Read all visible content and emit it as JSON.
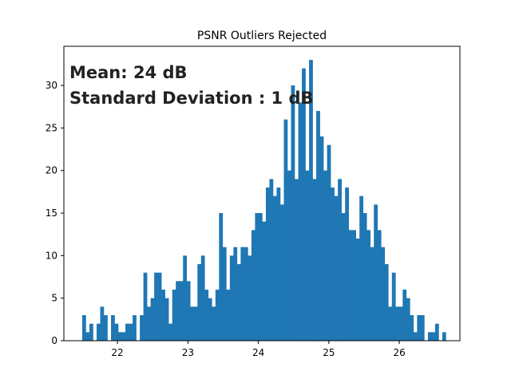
{
  "chart_data": {
    "type": "bar",
    "title": "PSNR Outliers Rejected",
    "xlabel": "",
    "ylabel": "",
    "xlim": [
      21.24,
      26.86
    ],
    "ylim": [
      0,
      34.6
    ],
    "x_ticks": [
      22,
      23,
      24,
      25,
      26
    ],
    "y_ticks": [
      0,
      5,
      10,
      15,
      20,
      25,
      30
    ],
    "grid": false,
    "bar_color": "#1f77b4",
    "annotations": [
      "Mean: 24 dB",
      "Standard Deviation : 1 dB"
    ],
    "bin_start": 21.5,
    "bin_width": 0.0511,
    "counts": [
      3,
      1,
      2,
      0,
      2,
      4,
      3,
      0,
      3,
      2,
      1,
      1,
      2,
      2,
      3,
      0,
      3,
      8,
      4,
      5,
      8,
      8,
      6,
      5,
      2,
      6,
      7,
      7,
      10,
      7,
      4,
      4,
      9,
      10,
      6,
      5,
      4,
      6,
      15,
      11,
      6,
      10,
      11,
      9,
      11,
      11,
      10,
      13,
      15,
      15,
      14,
      18,
      19,
      17,
      18,
      16,
      26,
      20,
      30,
      19,
      28,
      32,
      20,
      33,
      19,
      27,
      24,
      20,
      23,
      18,
      17,
      19,
      15,
      18,
      13,
      13,
      12,
      17,
      15,
      13,
      11,
      16,
      13,
      11,
      9,
      4,
      8,
      4,
      4,
      6,
      5,
      3,
      1,
      3,
      3,
      0,
      1,
      1,
      2,
      0,
      1
    ]
  }
}
